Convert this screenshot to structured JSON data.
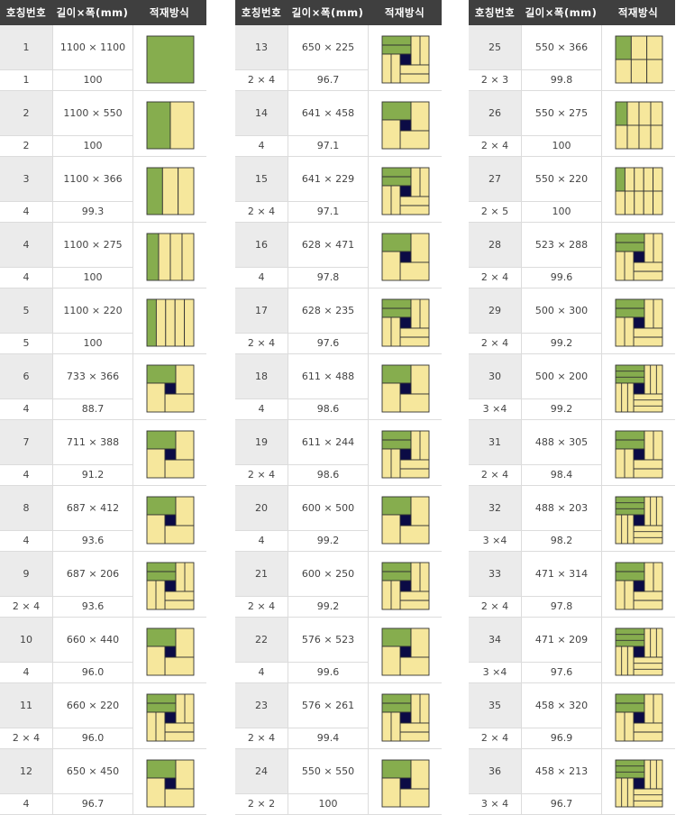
{
  "headers": {
    "no": "호칭번호",
    "dim": "길이×폭(mm)",
    "method": "적재방식"
  },
  "colors": {
    "header_bg": "#3f3f3f",
    "green": "#86ad4e",
    "yellow": "#f6e79c",
    "dark": "#0b0b45"
  },
  "tables": [
    {
      "rows": [
        {
          "no": "1",
          "dim": "1100 × 1100",
          "count": "1",
          "efficiency": "100",
          "pattern": "full"
        },
        {
          "no": "2",
          "dim": "1100 × 550",
          "count": "2",
          "efficiency": "100",
          "pattern": "halves"
        },
        {
          "no": "3",
          "dim": "1100 × 366",
          "count": "4",
          "efficiency": "99.3",
          "pattern": "strips3"
        },
        {
          "no": "4",
          "dim": "1100 × 275",
          "count": "4",
          "efficiency": "100",
          "pattern": "strips4"
        },
        {
          "no": "5",
          "dim": "1100 × 220",
          "count": "5",
          "efficiency": "100",
          "pattern": "strips5"
        },
        {
          "no": "6",
          "dim": "733 × 366",
          "count": "4",
          "efficiency": "88.7",
          "pattern": "pinwheel"
        },
        {
          "no": "7",
          "dim": "711 × 388",
          "count": "4",
          "efficiency": "91.2",
          "pattern": "pinwheel"
        },
        {
          "no": "8",
          "dim": "687 × 412",
          "count": "4",
          "efficiency": "93.6",
          "pattern": "pinwheel"
        },
        {
          "no": "9",
          "dim": "687 × 206",
          "count": "2 × 4",
          "efficiency": "93.6",
          "pattern": "pinwheel2"
        },
        {
          "no": "10",
          "dim": "660 × 440",
          "count": "4",
          "efficiency": "96.0",
          "pattern": "pinwheel"
        },
        {
          "no": "11",
          "dim": "660 × 220",
          "count": "2 × 4",
          "efficiency": "96.0",
          "pattern": "pinwheel2"
        },
        {
          "no": "12",
          "dim": "650 × 450",
          "count": "4",
          "efficiency": "96.7",
          "pattern": "pinwheel"
        }
      ]
    },
    {
      "rows": [
        {
          "no": "13",
          "dim": "650 × 225",
          "count": "2 × 4",
          "efficiency": "96.7",
          "pattern": "pinwheel2"
        },
        {
          "no": "14",
          "dim": "641 × 458",
          "count": "4",
          "efficiency": "97.1",
          "pattern": "pinwheel"
        },
        {
          "no": "15",
          "dim": "641 × 229",
          "count": "2 × 4",
          "efficiency": "97.1",
          "pattern": "pinwheel2"
        },
        {
          "no": "16",
          "dim": "628 × 471",
          "count": "4",
          "efficiency": "97.8",
          "pattern": "pinwheel"
        },
        {
          "no": "17",
          "dim": "628 × 235",
          "count": "2 × 4",
          "efficiency": "97.6",
          "pattern": "pinwheel2"
        },
        {
          "no": "18",
          "dim": "611 × 488",
          "count": "4",
          "efficiency": "98.6",
          "pattern": "pinwheel"
        },
        {
          "no": "19",
          "dim": "611 × 244",
          "count": "2 × 4",
          "efficiency": "98.6",
          "pattern": "pinwheel2"
        },
        {
          "no": "20",
          "dim": "600 × 500",
          "count": "4",
          "efficiency": "99.2",
          "pattern": "pinwheel"
        },
        {
          "no": "21",
          "dim": "600 × 250",
          "count": "2 × 4",
          "efficiency": "99.2",
          "pattern": "pinwheel2"
        },
        {
          "no": "22",
          "dim": "576 × 523",
          "count": "4",
          "efficiency": "99.6",
          "pattern": "pinwheel"
        },
        {
          "no": "23",
          "dim": "576 × 261",
          "count": "2 × 4",
          "efficiency": "99.4",
          "pattern": "pinwheel2"
        },
        {
          "no": "24",
          "dim": "550 × 550",
          "count": "2 × 2",
          "efficiency": "100",
          "pattern": "pinwheel"
        }
      ]
    },
    {
      "rows": [
        {
          "no": "25",
          "dim": "550 × 366",
          "count": "2 × 3",
          "efficiency": "99.8",
          "pattern": "grid2x3"
        },
        {
          "no": "26",
          "dim": "550 × 275",
          "count": "2 × 4",
          "efficiency": "100",
          "pattern": "grid2x4"
        },
        {
          "no": "27",
          "dim": "550 × 220",
          "count": "2 × 5",
          "efficiency": "100",
          "pattern": "grid2x5"
        },
        {
          "no": "28",
          "dim": "523 × 288",
          "count": "2 × 4",
          "efficiency": "99.6",
          "pattern": "pinwheel2"
        },
        {
          "no": "29",
          "dim": "500 × 300",
          "count": "2 × 4",
          "efficiency": "99.2",
          "pattern": "pinwheel2"
        },
        {
          "no": "30",
          "dim": "500 × 200",
          "count": "3 ×4",
          "efficiency": "99.2",
          "pattern": "pinwheel3"
        },
        {
          "no": "31",
          "dim": "488 × 305",
          "count": "2 × 4",
          "efficiency": "98.4",
          "pattern": "pinwheel2"
        },
        {
          "no": "32",
          "dim": "488 × 203",
          "count": "3 ×4",
          "efficiency": "98.2",
          "pattern": "pinwheel3"
        },
        {
          "no": "33",
          "dim": "471 × 314",
          "count": "2 × 4",
          "efficiency": "97.8",
          "pattern": "pinwheel2"
        },
        {
          "no": "34",
          "dim": "471 × 209",
          "count": "3 ×4",
          "efficiency": "97.6",
          "pattern": "pinwheel3"
        },
        {
          "no": "35",
          "dim": "458 × 320",
          "count": "2 × 4",
          "efficiency": "96.9",
          "pattern": "pinwheel2"
        },
        {
          "no": "36",
          "dim": "458 × 213",
          "count": "3 × 4",
          "efficiency": "96.7",
          "pattern": "pinwheel3"
        }
      ]
    }
  ]
}
